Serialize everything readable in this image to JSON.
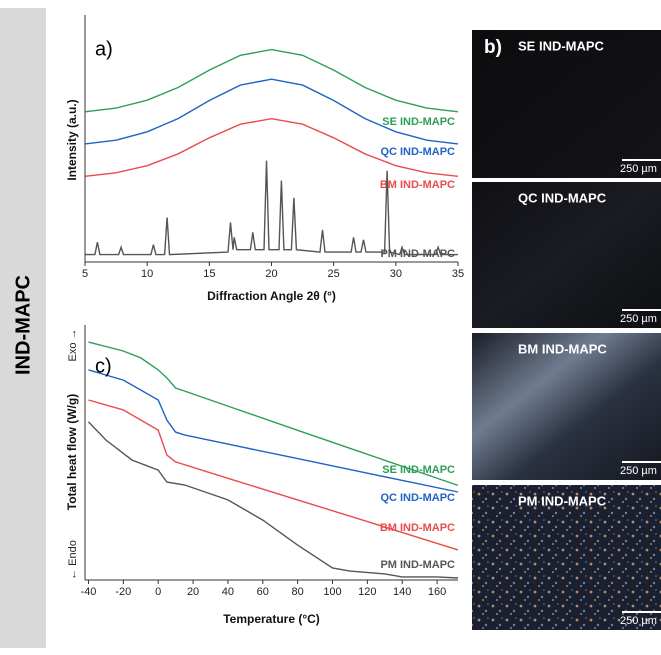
{
  "sidebar_label": "IND-MAPC",
  "chart_data": [
    {
      "type": "line",
      "panel_label": "a)",
      "xlabel": "Diffraction Angle 2θ (°)",
      "ylabel": "Intensity (a.u.)",
      "xlim": [
        5,
        35
      ],
      "xticks": [
        5,
        10,
        15,
        20,
        25,
        30,
        35
      ],
      "ylim": [
        0,
        100
      ],
      "series": [
        {
          "name": "SE IND-MAPC",
          "color": "#2e9e5b",
          "x": [
            5,
            7.5,
            10,
            12.5,
            15,
            17.5,
            20,
            22.5,
            25,
            27.5,
            30,
            32.5,
            35
          ],
          "values": [
            60.8,
            62.3,
            65.5,
            70.7,
            77.7,
            83.7,
            86,
            83.7,
            77.7,
            70.7,
            65.5,
            62.3,
            60.8
          ]
        },
        {
          "name": "QC IND-MAPC",
          "color": "#1f63c6",
          "x": [
            5,
            7.5,
            10,
            12.5,
            15,
            17.5,
            20,
            22.5,
            25,
            27.5,
            30,
            32.5,
            35
          ],
          "values": [
            47.8,
            49.3,
            52.7,
            58.1,
            65.4,
            71.6,
            74,
            71.6,
            65.4,
            58.1,
            52.7,
            49.3,
            47.8
          ]
        },
        {
          "name": "BM IND-MAPC",
          "color": "#e84c4c",
          "x": [
            5,
            7.5,
            10,
            12.5,
            15,
            17.5,
            20,
            22.5,
            25,
            27.5,
            30,
            32.5,
            35
          ],
          "values": [
            34.7,
            36.1,
            39.0,
            43.8,
            50.3,
            55.8,
            58,
            55.8,
            50.3,
            43.8,
            39.0,
            36.1,
            34.7
          ]
        },
        {
          "name": "PM IND-MAPC",
          "color": "#555555",
          "x": [
            5,
            5.8,
            6,
            6.2,
            7.7,
            7.9,
            8.1,
            10.3,
            10.5,
            10.7,
            11.4,
            11.6,
            11.8,
            16.5,
            16.7,
            16.9,
            17,
            17.2,
            18.3,
            18.5,
            18.7,
            19.4,
            19.6,
            19.8,
            20.6,
            20.8,
            21,
            21.6,
            21.8,
            22,
            23.9,
            24.1,
            24.3,
            26.4,
            26.6,
            26.8,
            27.2,
            27.4,
            27.6,
            29.1,
            29.3,
            29.5,
            30.3,
            30.5,
            30.7,
            33.2,
            33.4,
            33.6,
            35
          ],
          "values": [
            3,
            3,
            8,
            3,
            3,
            6,
            3,
            3,
            7,
            3,
            3,
            18,
            3,
            4,
            16,
            5,
            10,
            5,
            5,
            12,
            5,
            5,
            41,
            5,
            5,
            33,
            5,
            5,
            26,
            5,
            4,
            13,
            4,
            4,
            10,
            4,
            4,
            9,
            4,
            4,
            37,
            4,
            3,
            6,
            3,
            3,
            6,
            3,
            3
          ]
        }
      ]
    },
    {
      "type": "line",
      "panel_label": "c)",
      "xlabel": "Temperature (°C)",
      "ylabel": "Total heat flow (W/g)",
      "annotations": [
        "Exo →",
        "← Endo"
      ],
      "xlim": [
        -42,
        172
      ],
      "xticks": [
        -40,
        -20,
        0,
        20,
        40,
        60,
        80,
        100,
        120,
        140,
        160
      ],
      "ylim": [
        0,
        100
      ],
      "series": [
        {
          "name": "SE IND-MAPC",
          "color": "#2e9e5b",
          "x": [
            -40,
            -20,
            -10,
            0,
            5,
            10,
            15,
            40,
            80,
            120,
            172
          ],
          "values": [
            93.3,
            89.8,
            87.1,
            82.4,
            79.2,
            75.3,
            74.1,
            68.2,
            58.7,
            49.3,
            37.1
          ]
        },
        {
          "name": "QC IND-MAPC",
          "color": "#1f63c6",
          "x": [
            -40,
            -20,
            0,
            5,
            10,
            15,
            40,
            80,
            120,
            172
          ],
          "values": [
            82.4,
            78.4,
            70.6,
            62.7,
            58,
            56.9,
            53.3,
            47.6,
            41.9,
            34.5
          ]
        },
        {
          "name": "BM IND-MAPC",
          "color": "#e84c4c",
          "x": [
            -40,
            -20,
            0,
            5,
            10,
            40,
            80,
            120,
            172
          ],
          "values": [
            70.6,
            66.7,
            58.8,
            49,
            46.3,
            39.9,
            31.4,
            22.9,
            11.8
          ]
        },
        {
          "name": "PM IND-MAPC",
          "color": "#555555",
          "x": [
            -40,
            -30,
            -15,
            0,
            5,
            15,
            40,
            60,
            80,
            100,
            110,
            130,
            140,
            160,
            172
          ],
          "values": [
            62,
            54.9,
            47,
            43.1,
            38.4,
            37.3,
            31.4,
            23.5,
            13.7,
            4.7,
            3.5,
            2.4,
            1.2,
            1.2,
            0.8
          ]
        }
      ]
    }
  ],
  "micrographs": {
    "panel_label": "b)",
    "images": [
      {
        "label": "SE IND-MAPC",
        "scale": "250 µm"
      },
      {
        "label": "QC IND-MAPC",
        "scale": "250 µm"
      },
      {
        "label": "BM IND-MAPC",
        "scale": "250 µm"
      },
      {
        "label": "PM IND-MAPC",
        "scale": "250 µm"
      }
    ]
  }
}
